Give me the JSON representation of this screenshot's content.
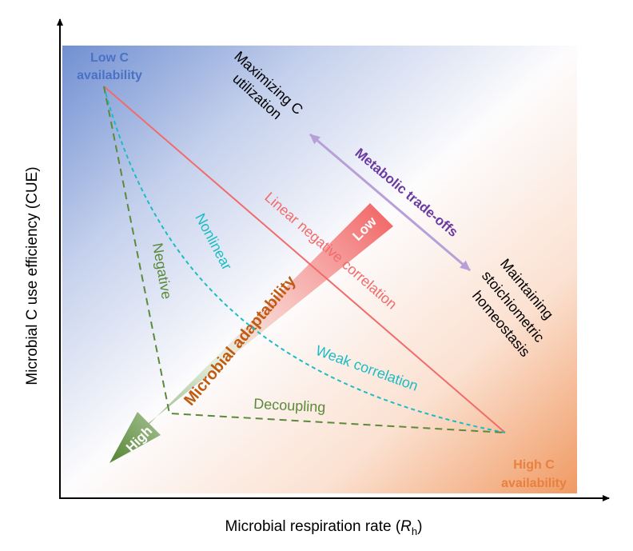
{
  "axes": {
    "y_label": "Microbial C use efficiency (CUE)",
    "x_label_main": "Microbial respiration rate (",
    "x_label_symbol": "R",
    "x_label_sub": "h",
    "x_label_end": ")"
  },
  "nodes": {
    "low_c": [
      "Low C",
      "availability"
    ],
    "high_c": [
      "High C",
      "availability"
    ]
  },
  "tradeoff": {
    "label": "Metabolic trade-offs",
    "top_end": [
      "Maximizing C",
      "utilization"
    ],
    "bottom_end": [
      "Maintaining",
      "stoichiometric",
      "homeostasis"
    ]
  },
  "relationships": {
    "linear": "Linear negative correlation",
    "nonlinear": "Nonlinear",
    "weak": "Weak correlation",
    "negative": "Negative",
    "decoupling": "Decoupling"
  },
  "adaptability": {
    "label": "Microbial adaptability",
    "low": "Low",
    "high": "High"
  },
  "colors": {
    "blue": "#4a72c4",
    "orange": "#e8803f",
    "red_line": "#f26b6b",
    "cyan": "#1bbcc4",
    "green": "#5a8a3a",
    "purple_arrow": "#b7a0d8",
    "purple_text": "#6a3aa0",
    "adaptability_text": "#c05a10"
  }
}
